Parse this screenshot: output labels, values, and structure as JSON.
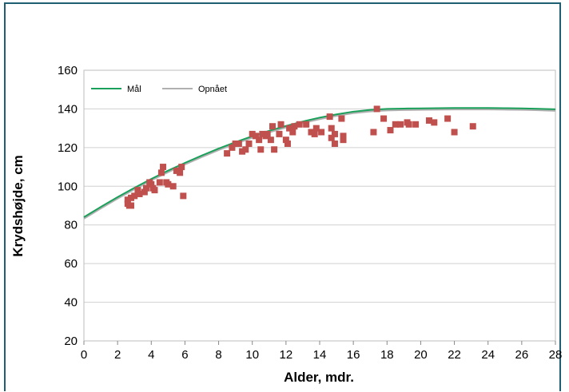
{
  "chart_data": {
    "type": "scatter",
    "title": "",
    "xlabel": "Alder, mdr.",
    "ylabel": "Krydshøjde, cm",
    "xlim": [
      0,
      28
    ],
    "ylim": [
      20,
      160
    ],
    "x_ticks": [
      "0",
      "2",
      "4",
      "6",
      "8",
      "10",
      "12",
      "14",
      "16",
      "18",
      "20",
      "22",
      "24",
      "26",
      "28"
    ],
    "y_ticks": [
      "20",
      "40",
      "60",
      "80",
      "100",
      "120",
      "140",
      "160"
    ],
    "grid": "horizontal",
    "legend": {
      "placement": "top-left",
      "entries": [
        "Mål",
        "Opnået"
      ]
    },
    "colors": {
      "target_line": "#1aa05a",
      "achieved_line": "#b0b0b0",
      "points": "#c0504d",
      "frame": "#1f5f74",
      "grid": "#d0d0d0"
    },
    "series": [
      {
        "name": "Mål",
        "kind": "line",
        "x": [
          0,
          1,
          2,
          3,
          4,
          5,
          6,
          7,
          8,
          9,
          10,
          11,
          12,
          13,
          14,
          15,
          16,
          17,
          18,
          19,
          20,
          21,
          22,
          23,
          24,
          25,
          26,
          27,
          28
        ],
        "y": [
          84,
          89.3,
          94.4,
          99.2,
          103.8,
          108.1,
          112.1,
          115.9,
          119.5,
          122.8,
          125.9,
          128.7,
          131.2,
          133.5,
          135.5,
          137.2,
          138.6,
          139.5,
          140,
          140.2,
          140.3,
          140.4,
          140.5,
          140.5,
          140.5,
          140.4,
          140.3,
          140.1,
          139.8
        ]
      },
      {
        "name": "Opnået",
        "kind": "line",
        "x": [
          0,
          1,
          2,
          3,
          4,
          5,
          6,
          7,
          8,
          9,
          10,
          11,
          12,
          13,
          14,
          15,
          16,
          17,
          18,
          19,
          20,
          21,
          22,
          23,
          24,
          25,
          26,
          27,
          28
        ],
        "y": [
          83.3,
          88.6,
          93.7,
          98.5,
          103.1,
          107.4,
          111.4,
          115.2,
          118.8,
          122.1,
          125.2,
          128,
          130.5,
          132.8,
          134.8,
          136.5,
          137.9,
          138.8,
          139.3,
          139.5,
          139.6,
          139.7,
          139.8,
          139.8,
          139.8,
          139.7,
          139.6,
          139.4,
          139.1
        ]
      },
      {
        "name": "",
        "kind": "points",
        "points": [
          [
            2.6,
            93
          ],
          [
            2.6,
            91
          ],
          [
            2.7,
            90
          ],
          [
            2.8,
            94
          ],
          [
            2.8,
            90
          ],
          [
            3.0,
            95
          ],
          [
            3.2,
            98
          ],
          [
            3.3,
            96
          ],
          [
            3.6,
            97
          ],
          [
            3.7,
            99
          ],
          [
            3.9,
            102
          ],
          [
            4.0,
            101
          ],
          [
            4.1,
            99
          ],
          [
            4.2,
            98
          ],
          [
            4.5,
            102
          ],
          [
            4.6,
            107
          ],
          [
            4.7,
            110
          ],
          [
            4.9,
            102
          ],
          [
            5.0,
            101
          ],
          [
            5.3,
            100
          ],
          [
            5.5,
            108
          ],
          [
            5.7,
            107
          ],
          [
            5.8,
            110
          ],
          [
            5.9,
            95
          ],
          [
            8.5,
            117
          ],
          [
            8.8,
            120
          ],
          [
            9.0,
            122
          ],
          [
            9.2,
            122
          ],
          [
            9.4,
            118
          ],
          [
            9.6,
            119
          ],
          [
            9.8,
            122
          ],
          [
            10.0,
            127
          ],
          [
            10.2,
            126
          ],
          [
            10.4,
            124
          ],
          [
            10.5,
            119
          ],
          [
            10.6,
            127
          ],
          [
            10.8,
            126
          ],
          [
            10.9,
            127
          ],
          [
            11.1,
            124
          ],
          [
            11.2,
            131
          ],
          [
            11.3,
            119
          ],
          [
            11.6,
            127
          ],
          [
            11.7,
            132
          ],
          [
            12.0,
            124
          ],
          [
            12.1,
            122
          ],
          [
            12.2,
            130
          ],
          [
            12.4,
            128
          ],
          [
            12.5,
            131
          ],
          [
            12.8,
            132
          ],
          [
            13.2,
            132
          ],
          [
            13.5,
            128
          ],
          [
            13.7,
            127
          ],
          [
            13.8,
            130
          ],
          [
            14.1,
            128
          ],
          [
            14.6,
            136
          ],
          [
            14.7,
            125
          ],
          [
            14.7,
            130
          ],
          [
            14.9,
            122
          ],
          [
            14.9,
            127
          ],
          [
            15.3,
            135
          ],
          [
            15.4,
            124
          ],
          [
            15.4,
            126
          ],
          [
            17.2,
            128
          ],
          [
            17.4,
            140
          ],
          [
            17.8,
            135
          ],
          [
            18.2,
            129
          ],
          [
            18.5,
            132
          ],
          [
            18.8,
            132
          ],
          [
            19.2,
            133
          ],
          [
            19.3,
            132
          ],
          [
            19.7,
            132
          ],
          [
            20.5,
            134
          ],
          [
            20.8,
            133
          ],
          [
            21.6,
            135
          ],
          [
            22.0,
            128
          ],
          [
            23.1,
            131
          ]
        ]
      }
    ]
  }
}
